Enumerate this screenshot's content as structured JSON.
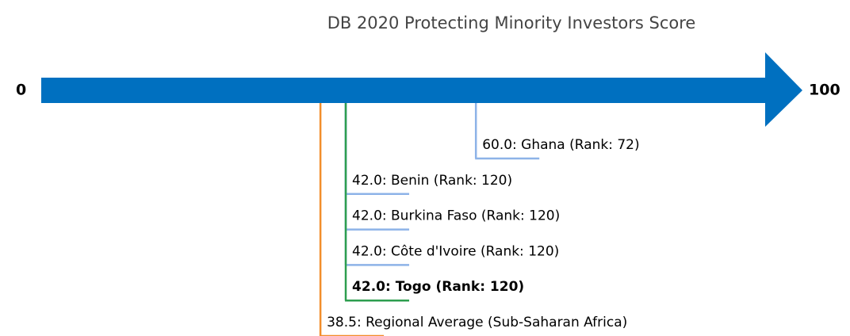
{
  "chart_data": {
    "type": "number-line",
    "title": "DB 2020 Protecting Minority Investors Score",
    "xlim": [
      0,
      100
    ],
    "xticks": [
      0,
      100
    ],
    "axis_color": "#0070c0",
    "highlight": 4,
    "items": [
      {
        "value": 60,
        "label": "60.0: Ghana (Rank: 72)",
        "color": "#8db3e8"
      },
      {
        "value": 42,
        "label": "42.0: Benin (Rank: 120)",
        "color": "#8db3e8"
      },
      {
        "value": 42,
        "label": "42.0: Burkina Faso (Rank: 120)",
        "color": "#8db3e8"
      },
      {
        "value": 42,
        "label": "42.0: Côte d'Ivoire (Rank: 120)",
        "color": "#8db3e8"
      },
      {
        "value": 42,
        "label": "42.0: Togo (Rank: 120)",
        "color": "#2e9e4f"
      },
      {
        "value": 38.5,
        "label": "38.5: Regional Average (Sub-Saharan Africa)",
        "color": "#f28e2b"
      }
    ]
  }
}
